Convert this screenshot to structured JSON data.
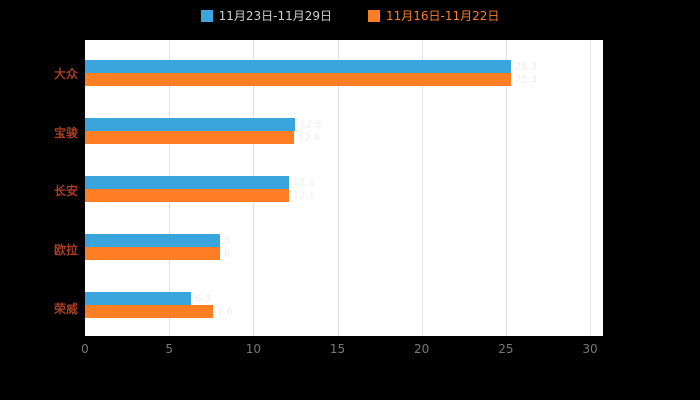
{
  "colors": {
    "background": "#000000",
    "plot_background": "#ffffff",
    "gridline": "#e3e3e3",
    "category_label": "#a63d22",
    "tick_label": "#777777",
    "value_label": "#ededed"
  },
  "chart_data": {
    "type": "bar",
    "orientation": "horizontal",
    "title": "",
    "xlabel": "",
    "ylabel": "",
    "categories": [
      "大众",
      "宝骏",
      "长安",
      "欧拉",
      "荣威"
    ],
    "series": [
      {
        "name": "11月23日-11月29日",
        "color": "#3aa4dc",
        "label_color": "#cfcfcf",
        "values": [
          25.3,
          12.5,
          12.1,
          8,
          6.3
        ]
      },
      {
        "name": "11月16日-11月22日",
        "color": "#fd7e23",
        "label_color": "#fd7e23",
        "values": [
          25.3,
          12.4,
          12.1,
          8,
          7.6
        ]
      }
    ],
    "xlim": [
      0,
      30
    ],
    "x_ticks": [
      0,
      5,
      10,
      15,
      20,
      25,
      30
    ],
    "grid": true,
    "legend_position": "top"
  }
}
